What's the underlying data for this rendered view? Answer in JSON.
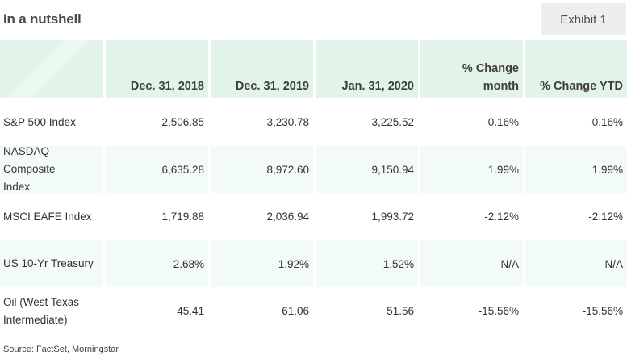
{
  "header": {
    "title": "In a nutshell",
    "exhibit_label": "Exhibit 1"
  },
  "table": {
    "columns": [
      "",
      "Dec. 31, 2018",
      "Dec. 31, 2019",
      "Jan. 31, 2020",
      "% Change month",
      "% Change YTD"
    ],
    "rows": [
      {
        "label": "S&P 500 Index",
        "values": [
          "2,506.85",
          "3,230.78",
          "3,225.52",
          "-0.16%",
          "-0.16%"
        ]
      },
      {
        "label": "NASDAQ Composite Index",
        "values": [
          "6,635.28",
          "8,972.60",
          "9,150.94",
          "1.99%",
          "1.99%"
        ]
      },
      {
        "label": "MSCI EAFE Index",
        "values": [
          "1,719.88",
          "2,036.94",
          "1,993.72",
          "-2.12%",
          "-2.12%"
        ]
      },
      {
        "label": "US 10-Yr Treasury",
        "values": [
          "2.68%",
          "1.92%",
          "1.52%",
          "N/A",
          "N/A"
        ]
      },
      {
        "label": "Oil (West Texas Intermediate)",
        "values": [
          "45.41",
          "61.06",
          "51.56",
          "-15.56%",
          "-15.56%"
        ]
      }
    ]
  },
  "footer": {
    "source": "Source: FactSet, Morningstar"
  },
  "colors": {
    "header_bg": "#e2f4e9",
    "alt_row_bg": "#f2fbf5",
    "exhibit_bg": "#eeeeee"
  }
}
